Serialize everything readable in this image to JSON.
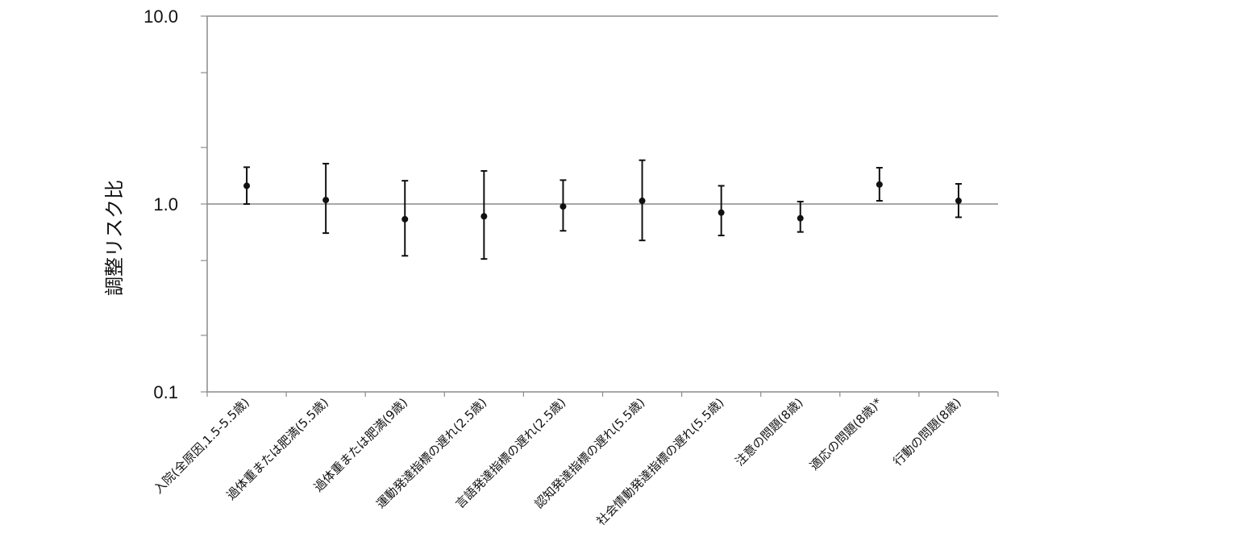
{
  "chart_data": {
    "type": "scatter",
    "subtype": "point-with-error-bars",
    "ylabel": "調整リスク比",
    "yscale": "log",
    "ylim": [
      0.1,
      10.0
    ],
    "yticks": [
      "0.1",
      "1.0",
      "10.0"
    ],
    "reference_line": 1.0,
    "grid": false,
    "categories": [
      "入院(全原因,1.5-5.5歳)",
      "過体重または肥満(5.5歳)",
      "過体重または肥満(9歳)",
      "運動発達指標の遅れ(2.5歳)",
      "言語発達指標の遅れ(2.5歳)",
      "認知発達指標の遅れ(5.5歳)",
      "社会情動発達指標の遅れ(5.5歳)",
      "注意の問題(8歳)",
      "適応の問題(8歳)*",
      "行動の問題(8歳)"
    ],
    "values": [
      1.25,
      1.05,
      0.83,
      0.86,
      0.97,
      1.04,
      0.9,
      0.84,
      1.27,
      1.04
    ],
    "lower": [
      1.0,
      0.7,
      0.53,
      0.51,
      0.72,
      0.64,
      0.68,
      0.71,
      1.04,
      0.85
    ],
    "upper": [
      1.57,
      1.64,
      1.33,
      1.5,
      1.34,
      1.71,
      1.25,
      1.03,
      1.56,
      1.28
    ]
  }
}
